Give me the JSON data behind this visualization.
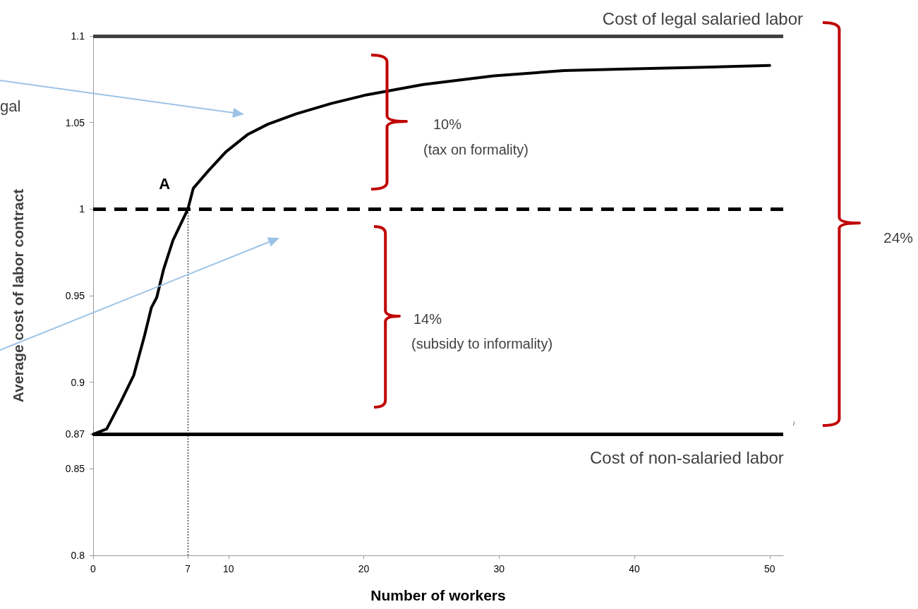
{
  "chart_data": {
    "type": "line",
    "xlabel": "Number of workers",
    "ylabel": "Average cost of labor contract",
    "series": [
      {
        "color": "#000000",
        "x": [
          0,
          1,
          2,
          3,
          3.8,
          4.3,
          4.7,
          5.2,
          5.9,
          7,
          7.4,
          8.5,
          9.8,
          11.4,
          12.9,
          15,
          17.6,
          20.2,
          24.4,
          29.6,
          34.8,
          40,
          45.2,
          50
        ],
        "values": [
          0.87,
          0.873,
          0.888,
          0.904,
          0.927,
          0.943,
          0.949,
          0.965,
          0.982,
          1.0,
          1.012,
          1.022,
          1.033,
          1.043,
          1.049,
          1.055,
          1.061,
          1.066,
          1.072,
          1.077,
          1.08,
          1.081,
          1.082,
          1.083
        ]
      }
    ],
    "xlim": [
      0,
      51
    ],
    "xticks": [
      0,
      7,
      10,
      20,
      30,
      40,
      50
    ],
    "ylim": [
      0.8,
      1.1
    ],
    "yticks": [
      0.8,
      0.85,
      0.87,
      0.9,
      0.95,
      1,
      1.05,
      1.1
    ],
    "ref_lines": [
      {
        "axis": "y",
        "value": 1.1,
        "color": "#404040",
        "line_style": "solid"
      },
      {
        "axis": "y",
        "value": 1,
        "color": "#000000",
        "line_style": "dashed"
      },
      {
        "axis": "y",
        "value": 0.87,
        "color": "#000000",
        "line_style": "solid"
      },
      {
        "axis": "x",
        "value": 7,
        "color": "#000000",
        "line_style": "dotted"
      }
    ],
    "annotations": [
      "Cost of legal salaried labor",
      "10%",
      "(tax on formality)",
      "14%",
      "(subsidy to informality)",
      "24%",
      "Cost of non-salaried labor",
      "gal",
      "i",
      {
        "text": "A",
        "x": 7,
        "y": 1
      }
    ],
    "grid": false,
    "marker": "none",
    "line_style": "solid"
  }
}
